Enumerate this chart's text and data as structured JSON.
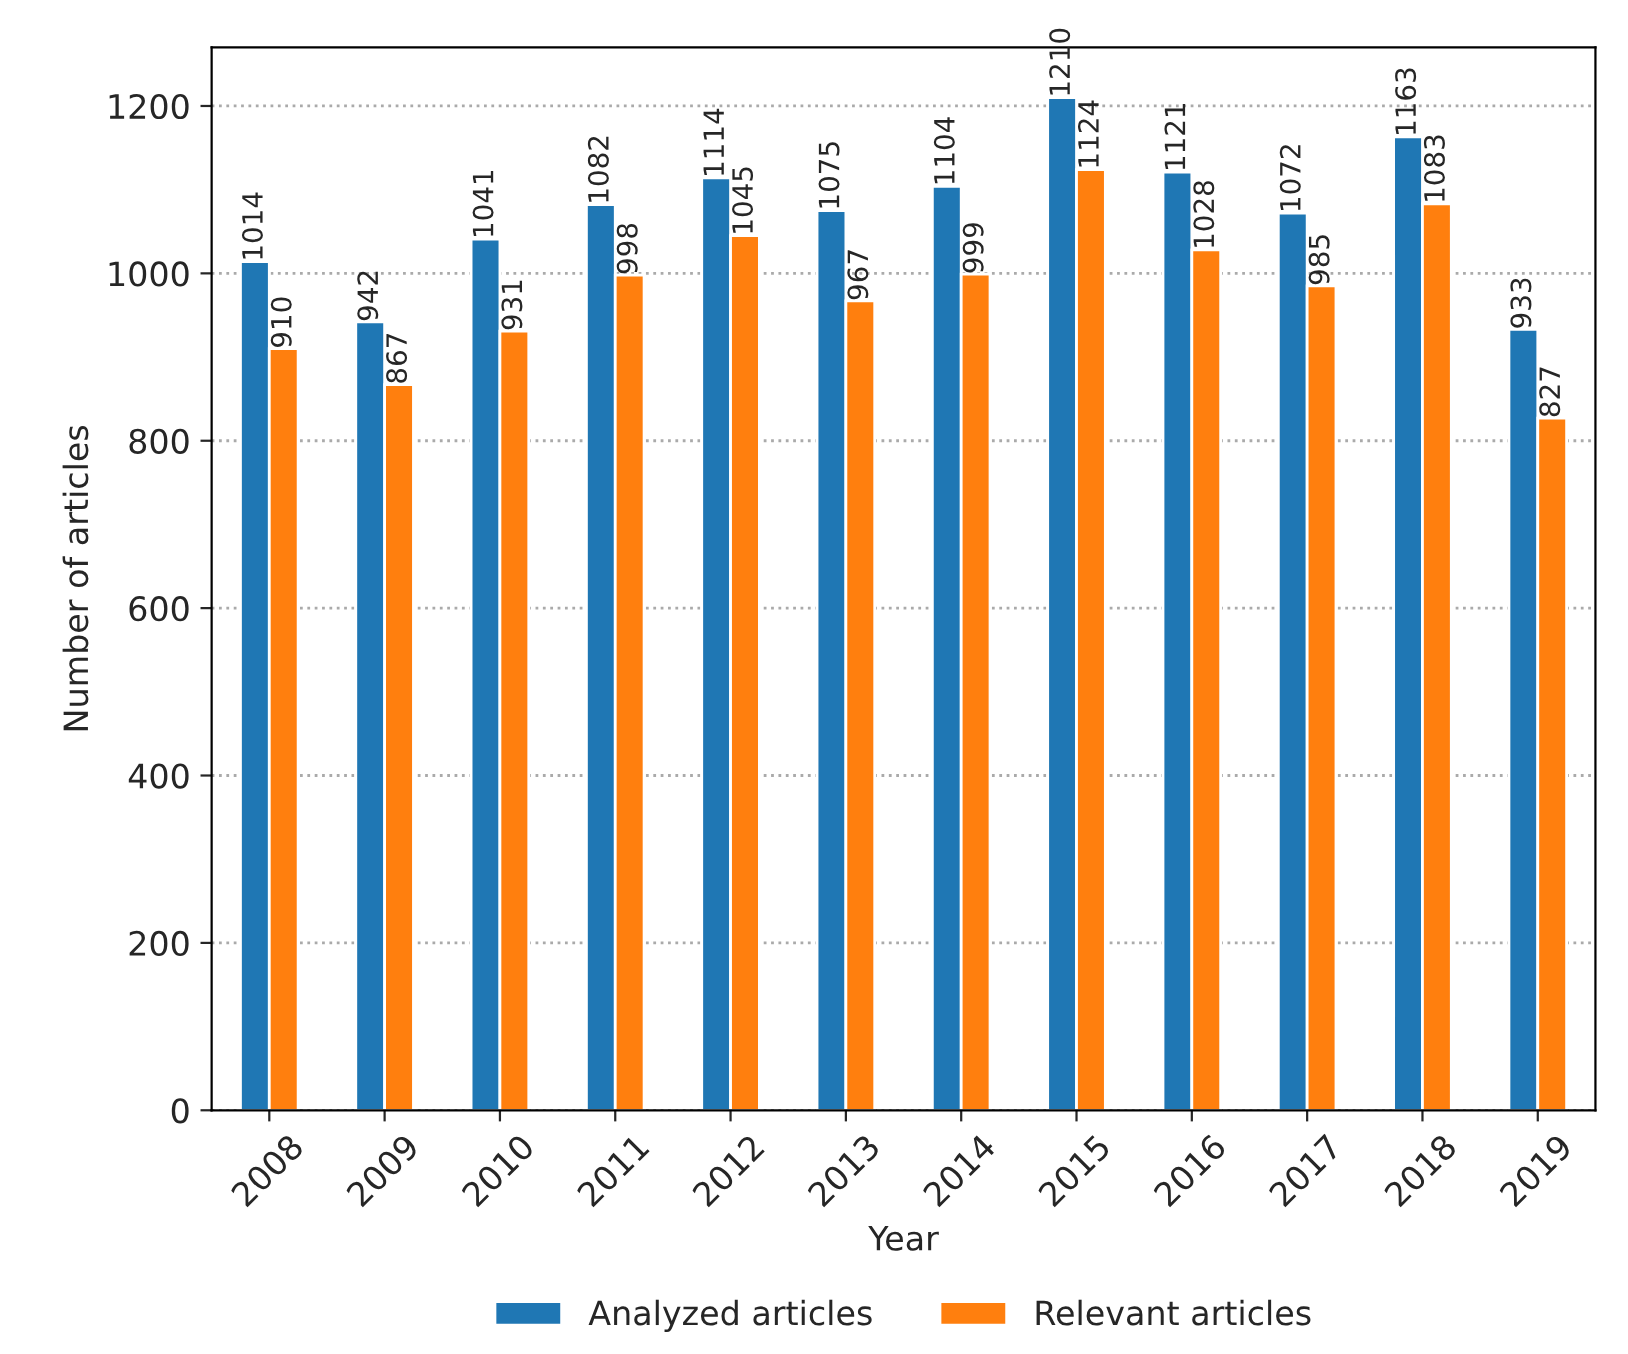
{
  "chart_data": {
    "type": "bar",
    "xlabel": "Year",
    "ylabel": "Number of articles",
    "categories": [
      "2008",
      "2009",
      "2010",
      "2011",
      "2012",
      "2013",
      "2014",
      "2015",
      "2016",
      "2017",
      "2018",
      "2019"
    ],
    "series": [
      {
        "name": "Analyzed articles",
        "color": "#1f77b4",
        "values": [
          1014,
          942,
          1041,
          1082,
          1114,
          1075,
          1104,
          1210,
          1121,
          1072,
          1163,
          933
        ]
      },
      {
        "name": "Relevant articles",
        "color": "#ff7f0e",
        "values": [
          910,
          867,
          931,
          998,
          1045,
          967,
          999,
          1124,
          1028,
          985,
          1083,
          827
        ]
      }
    ],
    "ylim": [
      0,
      1270
    ],
    "yticks": [
      0,
      200,
      400,
      600,
      800,
      1000,
      1200
    ],
    "grid": "y",
    "legend": "bottom",
    "data_labels": true
  }
}
